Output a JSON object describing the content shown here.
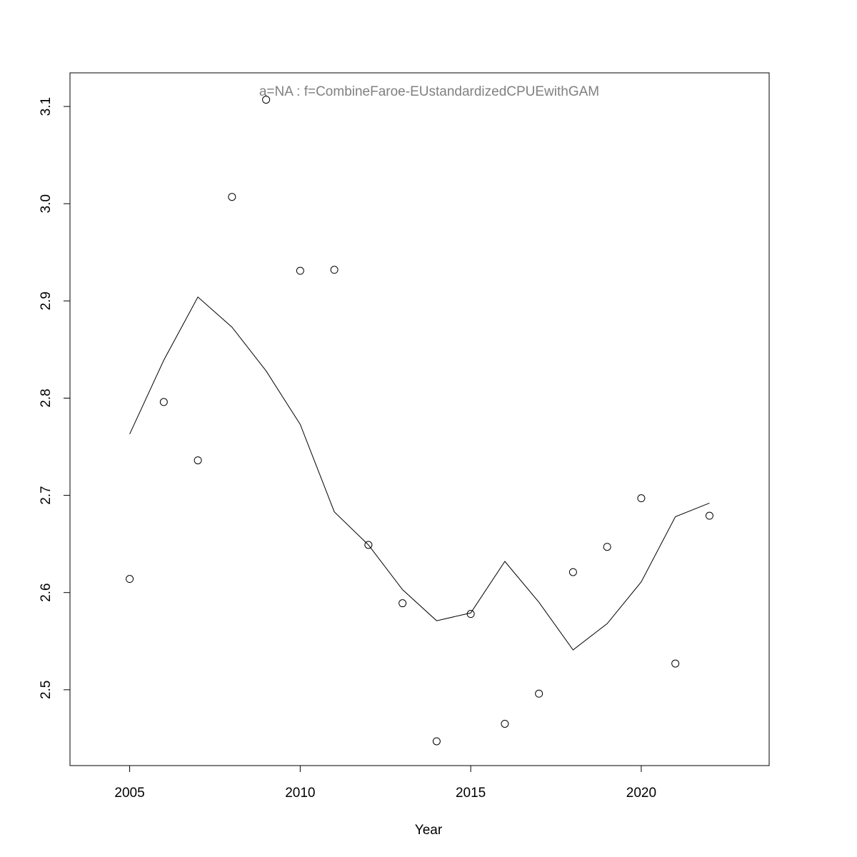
{
  "chart_data": {
    "type": "line",
    "annotation": "a=NA  :  f=CombineFaroe-EUstandardizedCPUEwithGAM",
    "x_label": "Year",
    "x": [
      2005,
      2006,
      2007,
      2008,
      2009,
      2010,
      2011,
      2012,
      2013,
      2014,
      2015,
      2016,
      2017,
      2018,
      2019,
      2020,
      2021,
      2022
    ],
    "series": [
      {
        "style": "points",
        "color": "#000000",
        "values": [
          2.614,
          2.796,
          2.736,
          3.007,
          3.107,
          2.931,
          2.932,
          2.649,
          2.589,
          2.447,
          2.578,
          2.465,
          2.496,
          2.621,
          2.647,
          2.697,
          2.527,
          2.679
        ]
      },
      {
        "style": "line",
        "color": "#000000",
        "values": [
          2.763,
          2.839,
          2.904,
          2.873,
          2.828,
          2.773,
          2.683,
          2.649,
          2.603,
          2.571,
          2.579,
          2.632,
          2.59,
          2.541,
          2.568,
          2.611,
          2.678,
          2.692
        ]
      }
    ],
    "xlim": [
      2003.25,
      2023.75
    ],
    "ylim": [
      2.422,
      3.1346
    ],
    "xticks": [
      2005,
      2010,
      2015,
      2020
    ],
    "yticks": [
      2.5,
      2.6,
      2.7,
      2.8,
      2.9,
      {
        "value": 3,
        "label": "3.0"
      },
      3.1
    ],
    "grid": false
  }
}
